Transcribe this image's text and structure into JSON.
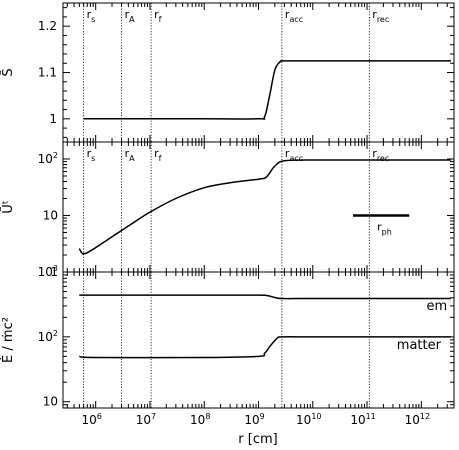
{
  "chart_data": {
    "type": "line",
    "x_axis": {
      "label": "r [cm]",
      "scale": "log",
      "range": [
        250000.0,
        4000000000000.0
      ],
      "tick_labels": [
        {
          "value": 1000000.0,
          "base": "10",
          "exp": "6"
        },
        {
          "value": 10000000.0,
          "base": "10",
          "exp": "7"
        },
        {
          "value": 100000000.0,
          "base": "10",
          "exp": "8"
        },
        {
          "value": 1000000000.0,
          "base": "10",
          "exp": "9"
        },
        {
          "value": 10000000000.0,
          "base": "10",
          "exp": "10"
        },
        {
          "value": 100000000000.0,
          "base": "10",
          "exp": "11"
        },
        {
          "value": 1000000000000.0,
          "base": "10",
          "exp": "12"
        }
      ]
    },
    "vertical_lines": [
      {
        "x": 600000.0,
        "label": "r",
        "sub": "s"
      },
      {
        "x": 3000000.0,
        "label": "r",
        "sub": "A"
      },
      {
        "x": 10500000.0,
        "label": "r",
        "sub": "f"
      },
      {
        "x": 2700000000.0,
        "label": "r",
        "sub": "acc"
      },
      {
        "x": 110000000000.0,
        "label": "r",
        "sub": "rec"
      }
    ],
    "panels": [
      {
        "id": "top",
        "ylabel": "S̃",
        "yscale": "linear",
        "ylim": [
          0.95,
          1.25
        ],
        "yticks": [
          {
            "value": 1,
            "label": "1"
          },
          {
            "value": 1.1,
            "label": "1.1"
          },
          {
            "value": 1.2,
            "label": "1.2"
          }
        ],
        "series": [
          {
            "x": [
              600000.0,
              1000000.0,
              10000000.0,
              100000000.0,
              1000000000.0,
              1300000000.0,
              1600000000.0,
              2000000000.0,
              2500000000.0,
              3000000000.0,
              10000000000.0,
              100000000000.0,
              3500000000000.0
            ],
            "y": [
              1.0,
              1.0,
              1.0,
              1.0,
              1.0,
              1.005,
              1.05,
              1.105,
              1.123,
              1.125,
              1.125,
              1.125,
              1.125
            ]
          }
        ]
      },
      {
        "id": "middle",
        "ylabel": "Ũᵗ",
        "yscale": "log",
        "ylim": [
          1,
          200
        ],
        "yticks": [
          {
            "value": 1,
            "base": "1",
            "exp": ""
          },
          {
            "value": 10,
            "base": "10",
            "exp": ""
          },
          {
            "value": 100,
            "base": "10",
            "exp": "2"
          }
        ],
        "series": [
          {
            "x": [
              500000.0,
              550000.0,
              600000.0,
              700000.0,
              1000000.0,
              2000000.0,
              5000000.0,
              10000000.0,
              30000000.0,
              100000000.0,
              300000000.0,
              1000000000.0,
              1400000000.0,
              2000000000.0,
              3000000000.0,
              10000000000.0,
              100000000000.0,
              3500000000000.0
            ],
            "y": [
              2.6,
              2.2,
              2.1,
              2.2,
              2.7,
              4.2,
              7.5,
              11.5,
              20,
              31,
              38,
              44,
              48,
              75,
              93,
              96,
              96,
              96
            ]
          }
        ],
        "annotation": {
          "label": "r",
          "sub": "ph",
          "x0": 55000000000.0,
          "x1": 600000000000.0,
          "y": 10
        }
      },
      {
        "id": "bottom",
        "ylabel": "Ė / ṁc²",
        "yscale": "log",
        "ylim": [
          8,
          1000
        ],
        "yticks": [
          {
            "value": 10,
            "base": "10",
            "exp": ""
          },
          {
            "value": 100,
            "base": "10",
            "exp": "2"
          },
          {
            "value": 1000,
            "base": "10",
            "exp": "3"
          }
        ],
        "series": [
          {
            "name": "em",
            "x": [
              500000.0,
              1000000.0,
              100000000.0,
              1000000000.0,
              1500000000.0,
              2000000000.0,
              2700000000.0,
              10000000000.0,
              100000000000.0,
              3500000000000.0
            ],
            "y": [
              440,
              440,
              440,
              440,
              430,
              405,
              390,
              390,
              390,
              390
            ],
            "label_at": [
              3000000000000.0,
              260
            ]
          },
          {
            "name": "matter",
            "x": [
              500000.0,
              1000000.0,
              100000000.0,
              1000000000.0,
              1300000000.0,
              1700000000.0,
              2200000000.0,
              2700000000.0,
              10000000000.0,
              100000000000.0,
              3500000000000.0
            ],
            "y": [
              50,
              48,
              48,
              50,
              56,
              75,
              95,
              100,
              100,
              100,
              100
            ],
            "label_at": [
              2300000000000.0,
              65
            ]
          }
        ]
      }
    ]
  }
}
